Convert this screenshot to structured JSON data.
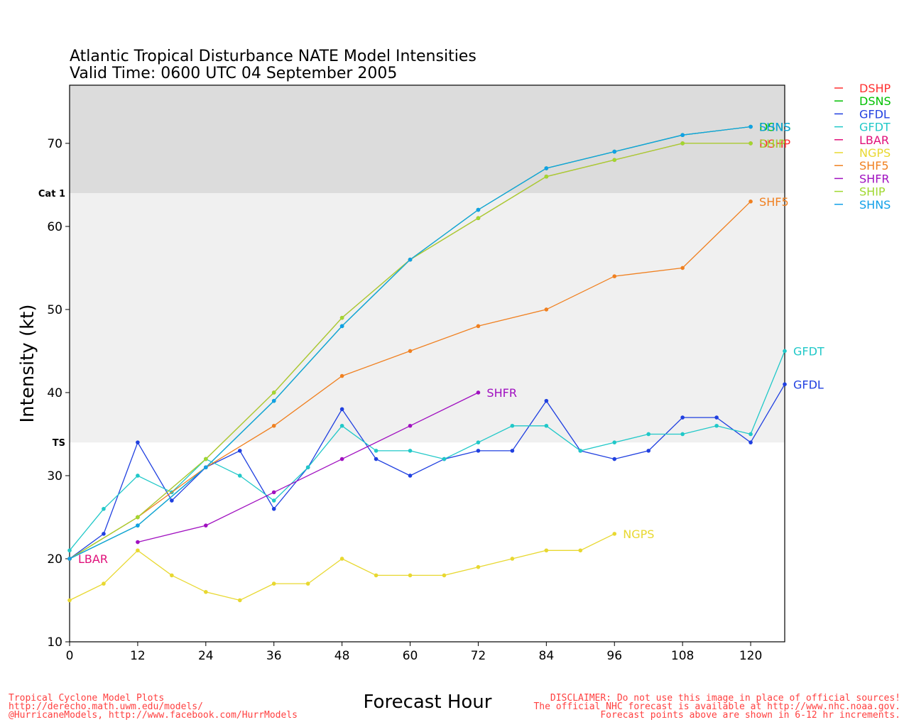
{
  "chart_data": {
    "type": "line",
    "title": "Atlantic Tropical Disturbance NATE Model Intensities",
    "subtitle": "Valid Time: 0600 UTC 04 September 2005",
    "xlabel": "Forecast Hour",
    "ylabel": "Intensity (kt)",
    "xlim": [
      0,
      126
    ],
    "ylim": [
      10,
      77
    ],
    "xticks": [
      0,
      12,
      24,
      36,
      48,
      60,
      72,
      84,
      96,
      108,
      120
    ],
    "yticks": [
      10,
      20,
      30,
      40,
      50,
      60,
      70
    ],
    "grid": false,
    "legend_position": "right",
    "bands": [
      {
        "from": 64,
        "to": 77,
        "color": "#dcdcdc",
        "label": "Cat 1"
      },
      {
        "from": 34,
        "to": 64,
        "color": "#f0f0f0",
        "label": "TS"
      }
    ],
    "series": [
      {
        "name": "DSHP",
        "color": "#ff3030",
        "end_label": "DSHP",
        "x": [
          0,
          12,
          24,
          36,
          48,
          60,
          72,
          84,
          96,
          108,
          120
        ],
        "y": [
          20,
          25,
          32,
          40,
          49,
          56,
          61,
          66,
          68,
          70,
          70
        ]
      },
      {
        "name": "DSNS",
        "color": "#00c000",
        "end_label": "DSNS",
        "x": [
          0,
          12,
          24,
          36,
          48,
          60,
          72,
          84,
          96,
          108,
          120
        ],
        "y": [
          20,
          24,
          31,
          39,
          48,
          56,
          62,
          67,
          69,
          71,
          72
        ]
      },
      {
        "name": "GFDL",
        "color": "#2040e0",
        "end_label": "GFDL",
        "x": [
          0,
          6,
          12,
          18,
          24,
          30,
          36,
          42,
          48,
          54,
          60,
          66,
          72,
          78,
          84,
          90,
          96,
          102,
          108,
          114,
          120,
          126
        ],
        "y": [
          20,
          23,
          34,
          27,
          31,
          33,
          26,
          31,
          38,
          32,
          30,
          32,
          33,
          33,
          39,
          33,
          32,
          33,
          37,
          37,
          34,
          41
        ]
      },
      {
        "name": "GFDT",
        "color": "#20c8c8",
        "end_label": "GFDT",
        "x": [
          0,
          6,
          12,
          18,
          24,
          30,
          36,
          42,
          48,
          54,
          60,
          66,
          72,
          78,
          84,
          90,
          96,
          102,
          108,
          114,
          120,
          126
        ],
        "y": [
          21,
          26,
          30,
          28,
          32,
          30,
          27,
          31,
          36,
          33,
          33,
          32,
          34,
          36,
          36,
          33,
          34,
          35,
          35,
          36,
          35,
          45
        ]
      },
      {
        "name": "LBAR",
        "color": "#e0107a",
        "end_label": "LBAR",
        "x": [
          0
        ],
        "y": [
          20
        ]
      },
      {
        "name": "NGPS",
        "color": "#e8d830",
        "end_label": "NGPS",
        "x": [
          0,
          6,
          12,
          18,
          24,
          30,
          36,
          42,
          48,
          54,
          60,
          66,
          72,
          78,
          84,
          90,
          96
        ],
        "y": [
          15,
          17,
          21,
          18,
          16,
          15,
          17,
          17,
          20,
          18,
          18,
          18,
          19,
          20,
          21,
          21,
          23
        ]
      },
      {
        "name": "SHF5",
        "color": "#f08020",
        "end_label": "SHF5",
        "x": [
          0,
          12,
          24,
          36,
          48,
          60,
          72,
          84,
          96,
          108,
          120
        ],
        "y": [
          20,
          25,
          31,
          36,
          42,
          45,
          48,
          50,
          54,
          55,
          63
        ]
      },
      {
        "name": "SHFR",
        "color": "#a010c0",
        "end_label": "SHFR",
        "x": [
          12,
          24,
          36,
          48,
          60,
          72
        ],
        "y": [
          22,
          24,
          28,
          32,
          36,
          40
        ]
      },
      {
        "name": "SHIP",
        "color": "#a0d830",
        "end_label": "SHIP",
        "x": [
          0,
          12,
          24,
          36,
          48,
          60,
          72,
          84,
          96,
          108,
          120
        ],
        "y": [
          20,
          25,
          32,
          40,
          49,
          56,
          61,
          66,
          68,
          70,
          70
        ]
      },
      {
        "name": "SHNS",
        "color": "#10a0e8",
        "end_label": "SHNS",
        "x": [
          0,
          12,
          24,
          36,
          48,
          60,
          72,
          84,
          96,
          108,
          120
        ],
        "y": [
          20,
          24,
          31,
          39,
          48,
          56,
          62,
          67,
          69,
          71,
          72
        ]
      }
    ]
  },
  "footer": {
    "left_line1": "Tropical Cyclone Model Plots",
    "left_line2": "http://derecho.math.uwm.edu/models/",
    "left_line3": "@HurricaneModels, http://www.facebook.com/HurrModels",
    "right_line1": "DISCLAIMER: Do not use this image in place of official sources!",
    "right_line2": "The official NHC forecast is available at http://www.nhc.noaa.gov.",
    "right_line3": "Forecast points above are shown in 6-12 hr increments."
  }
}
